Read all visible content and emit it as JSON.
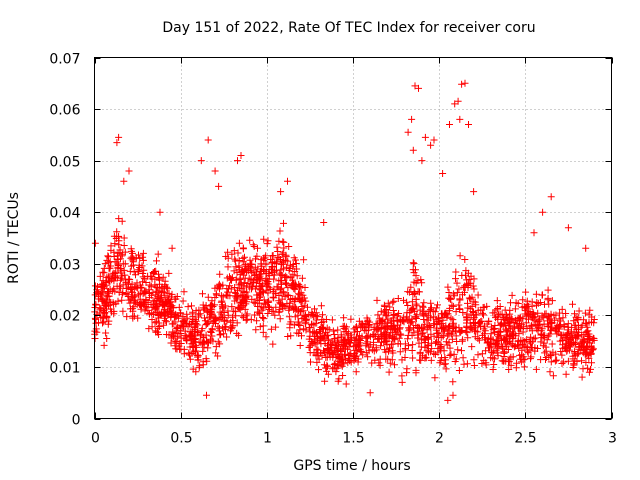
{
  "chart_data": {
    "type": "scatter",
    "title": "Day 151 of 2022, Rate Of TEC Index for receiver coru",
    "xlabel": "GPS time / hours",
    "ylabel": "ROTI / TECUs",
    "xlim": [
      0,
      3
    ],
    "ylim": [
      0,
      0.07
    ],
    "xticks": [
      0,
      0.5,
      1,
      1.5,
      2,
      2.5,
      3
    ],
    "xtick_labels": [
      "0",
      "0.5",
      "1",
      "1.5",
      "2",
      "2.5",
      "3"
    ],
    "yticks": [
      0,
      0.01,
      0.02,
      0.03,
      0.04,
      0.05,
      0.06,
      0.07
    ],
    "ytick_labels": [
      "0",
      "0.01",
      "0.02",
      "0.03",
      "0.04",
      "0.05",
      "0.06",
      "0.07"
    ],
    "grid": true,
    "marker": "+",
    "color": "#ff0000",
    "envelope": {
      "x": [
        0.0,
        0.1,
        0.15,
        0.2,
        0.3,
        0.4,
        0.5,
        0.6,
        0.65,
        0.7,
        0.8,
        0.9,
        1.0,
        1.1,
        1.2,
        1.3,
        1.4,
        1.5,
        1.6,
        1.7,
        1.8,
        1.85,
        1.9,
        2.0,
        2.1,
        2.15,
        2.2,
        2.3,
        2.4,
        2.5,
        2.6,
        2.7,
        2.8,
        2.9
      ],
      "center": [
        0.02,
        0.025,
        0.03,
        0.027,
        0.024,
        0.022,
        0.018,
        0.016,
        0.018,
        0.02,
        0.024,
        0.027,
        0.026,
        0.028,
        0.022,
        0.015,
        0.013,
        0.014,
        0.016,
        0.017,
        0.017,
        0.02,
        0.018,
        0.016,
        0.019,
        0.022,
        0.02,
        0.015,
        0.016,
        0.017,
        0.018,
        0.016,
        0.015,
        0.015
      ],
      "spread": [
        0.008,
        0.011,
        0.012,
        0.011,
        0.01,
        0.009,
        0.008,
        0.009,
        0.01,
        0.01,
        0.011,
        0.011,
        0.011,
        0.012,
        0.01,
        0.007,
        0.007,
        0.007,
        0.007,
        0.008,
        0.01,
        0.013,
        0.011,
        0.009,
        0.012,
        0.014,
        0.011,
        0.008,
        0.009,
        0.009,
        0.01,
        0.009,
        0.008,
        0.008
      ]
    },
    "outliers": [
      [
        0.005,
        0.034
      ],
      [
        0.13,
        0.0535
      ],
      [
        0.14,
        0.0545
      ],
      [
        0.17,
        0.046
      ],
      [
        0.2,
        0.048
      ],
      [
        0.38,
        0.04
      ],
      [
        0.45,
        0.033
      ],
      [
        0.62,
        0.05
      ],
      [
        0.66,
        0.054
      ],
      [
        0.7,
        0.048
      ],
      [
        0.65,
        0.0045
      ],
      [
        0.72,
        0.045
      ],
      [
        0.85,
        0.051
      ],
      [
        0.83,
        0.05
      ],
      [
        1.12,
        0.046
      ],
      [
        1.08,
        0.044
      ],
      [
        1.33,
        0.038
      ],
      [
        1.6,
        0.005
      ],
      [
        1.86,
        0.0645
      ],
      [
        1.88,
        0.064
      ],
      [
        1.84,
        0.058
      ],
      [
        1.82,
        0.0555
      ],
      [
        1.85,
        0.052
      ],
      [
        1.9,
        0.05
      ],
      [
        1.92,
        0.0545
      ],
      [
        1.95,
        0.053
      ],
      [
        1.97,
        0.054
      ],
      [
        2.02,
        0.0475
      ],
      [
        2.06,
        0.057
      ],
      [
        2.09,
        0.061
      ],
      [
        2.11,
        0.0615
      ],
      [
        2.13,
        0.0648
      ],
      [
        2.15,
        0.065
      ],
      [
        2.12,
        0.058
      ],
      [
        2.17,
        0.057
      ],
      [
        2.2,
        0.044
      ],
      [
        2.05,
        0.0035
      ],
      [
        2.08,
        0.0045
      ],
      [
        2.65,
        0.043
      ],
      [
        2.6,
        0.04
      ],
      [
        2.75,
        0.037
      ],
      [
        2.85,
        0.033
      ],
      [
        2.55,
        0.036
      ]
    ],
    "n_points": 2400
  }
}
